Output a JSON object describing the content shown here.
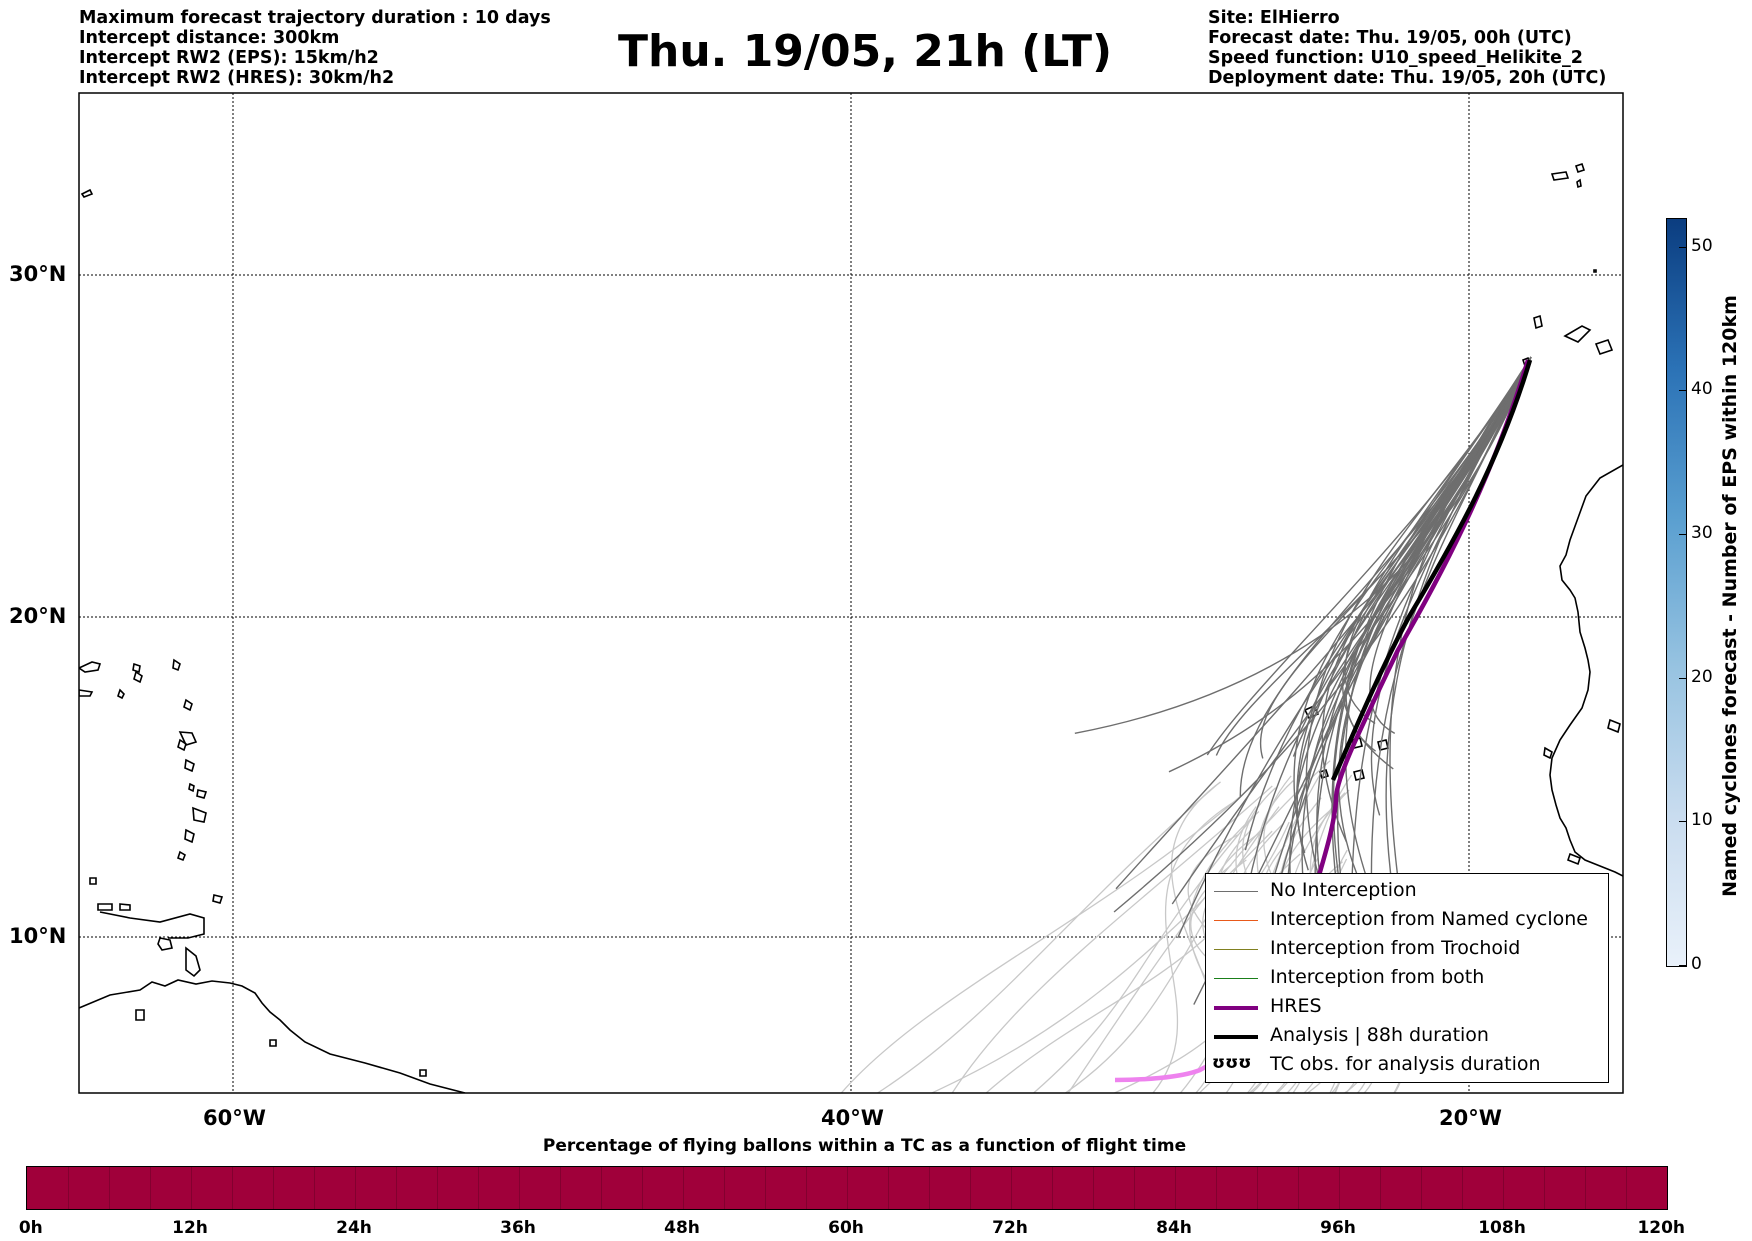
{
  "header": {
    "left_lines": [
      "Maximum forecast trajectory duration : 10 days",
      "Intercept distance: 300km",
      "Intercept RW2 (EPS):  15km/h2",
      "Intercept RW2 (HRES): 30km/h2"
    ],
    "right_lines": [
      "Site: ElHierro",
      "Forecast date: Thu. 19/05, 00h (UTC)",
      "Speed function: U10_speed_Helikite_2",
      "Deployment date: Thu. 19/05, 20h (UTC)"
    ],
    "title": "Thu. 19/05, 21h (LT)"
  },
  "map": {
    "lon_range": [
      -65,
      15
    ],
    "lat_range": [
      5,
      35
    ],
    "lon_labels": [
      {
        "lon": -60,
        "label": "60°W"
      },
      {
        "lon": -40,
        "label": "40°W"
      },
      {
        "lon": -20,
        "label": "20°W"
      }
    ],
    "lat_labels": [
      {
        "lat": 30,
        "label": "30°N"
      },
      {
        "lat": 20,
        "label": "20°N"
      },
      {
        "lat": 10,
        "label": "10°N"
      }
    ],
    "gridlines": "dotted",
    "colors": {
      "no_interception": "#6e6e6e",
      "no_interception_late": "#c8c8c8",
      "named_cyclone": "#e8591a",
      "trochoid": "#808020",
      "both": "#1a7f1a",
      "hres": "#800080",
      "hres_late": "#ee82ee",
      "analysis": "#000000"
    }
  },
  "legend": {
    "items": [
      {
        "label": "No Interception",
        "color": "#6e6e6e",
        "width": 1.5
      },
      {
        "label": "Interception from Named cyclone",
        "color": "#e8591a",
        "width": 1.5
      },
      {
        "label": "Interception from Trochoid",
        "color": "#808020",
        "width": 1.5
      },
      {
        "label": "Interception from both",
        "color": "#1a7f1a",
        "width": 1.5
      },
      {
        "label": "HRES",
        "color": "#800080",
        "width": 4
      },
      {
        "label": "Analysis | 88h duration",
        "color": "#000000",
        "width": 4
      }
    ],
    "tc_symbol": "ʊʊʊ",
    "tc_label": "TC obs. for analysis duration"
  },
  "colorbar": {
    "label": "Named cyclones forecast - Number of EPS within 120km",
    "ticks": [
      0,
      10,
      20,
      30,
      40,
      50
    ],
    "max": 52
  },
  "percentage_bar": {
    "title": "Percentage of flying ballons within a TC as a function of flight time",
    "ticks": [
      "0h",
      "12h",
      "24h",
      "36h",
      "48h",
      "60h",
      "72h",
      "84h",
      "96h",
      "108h",
      "120h"
    ],
    "color": "#a0003a"
  }
}
